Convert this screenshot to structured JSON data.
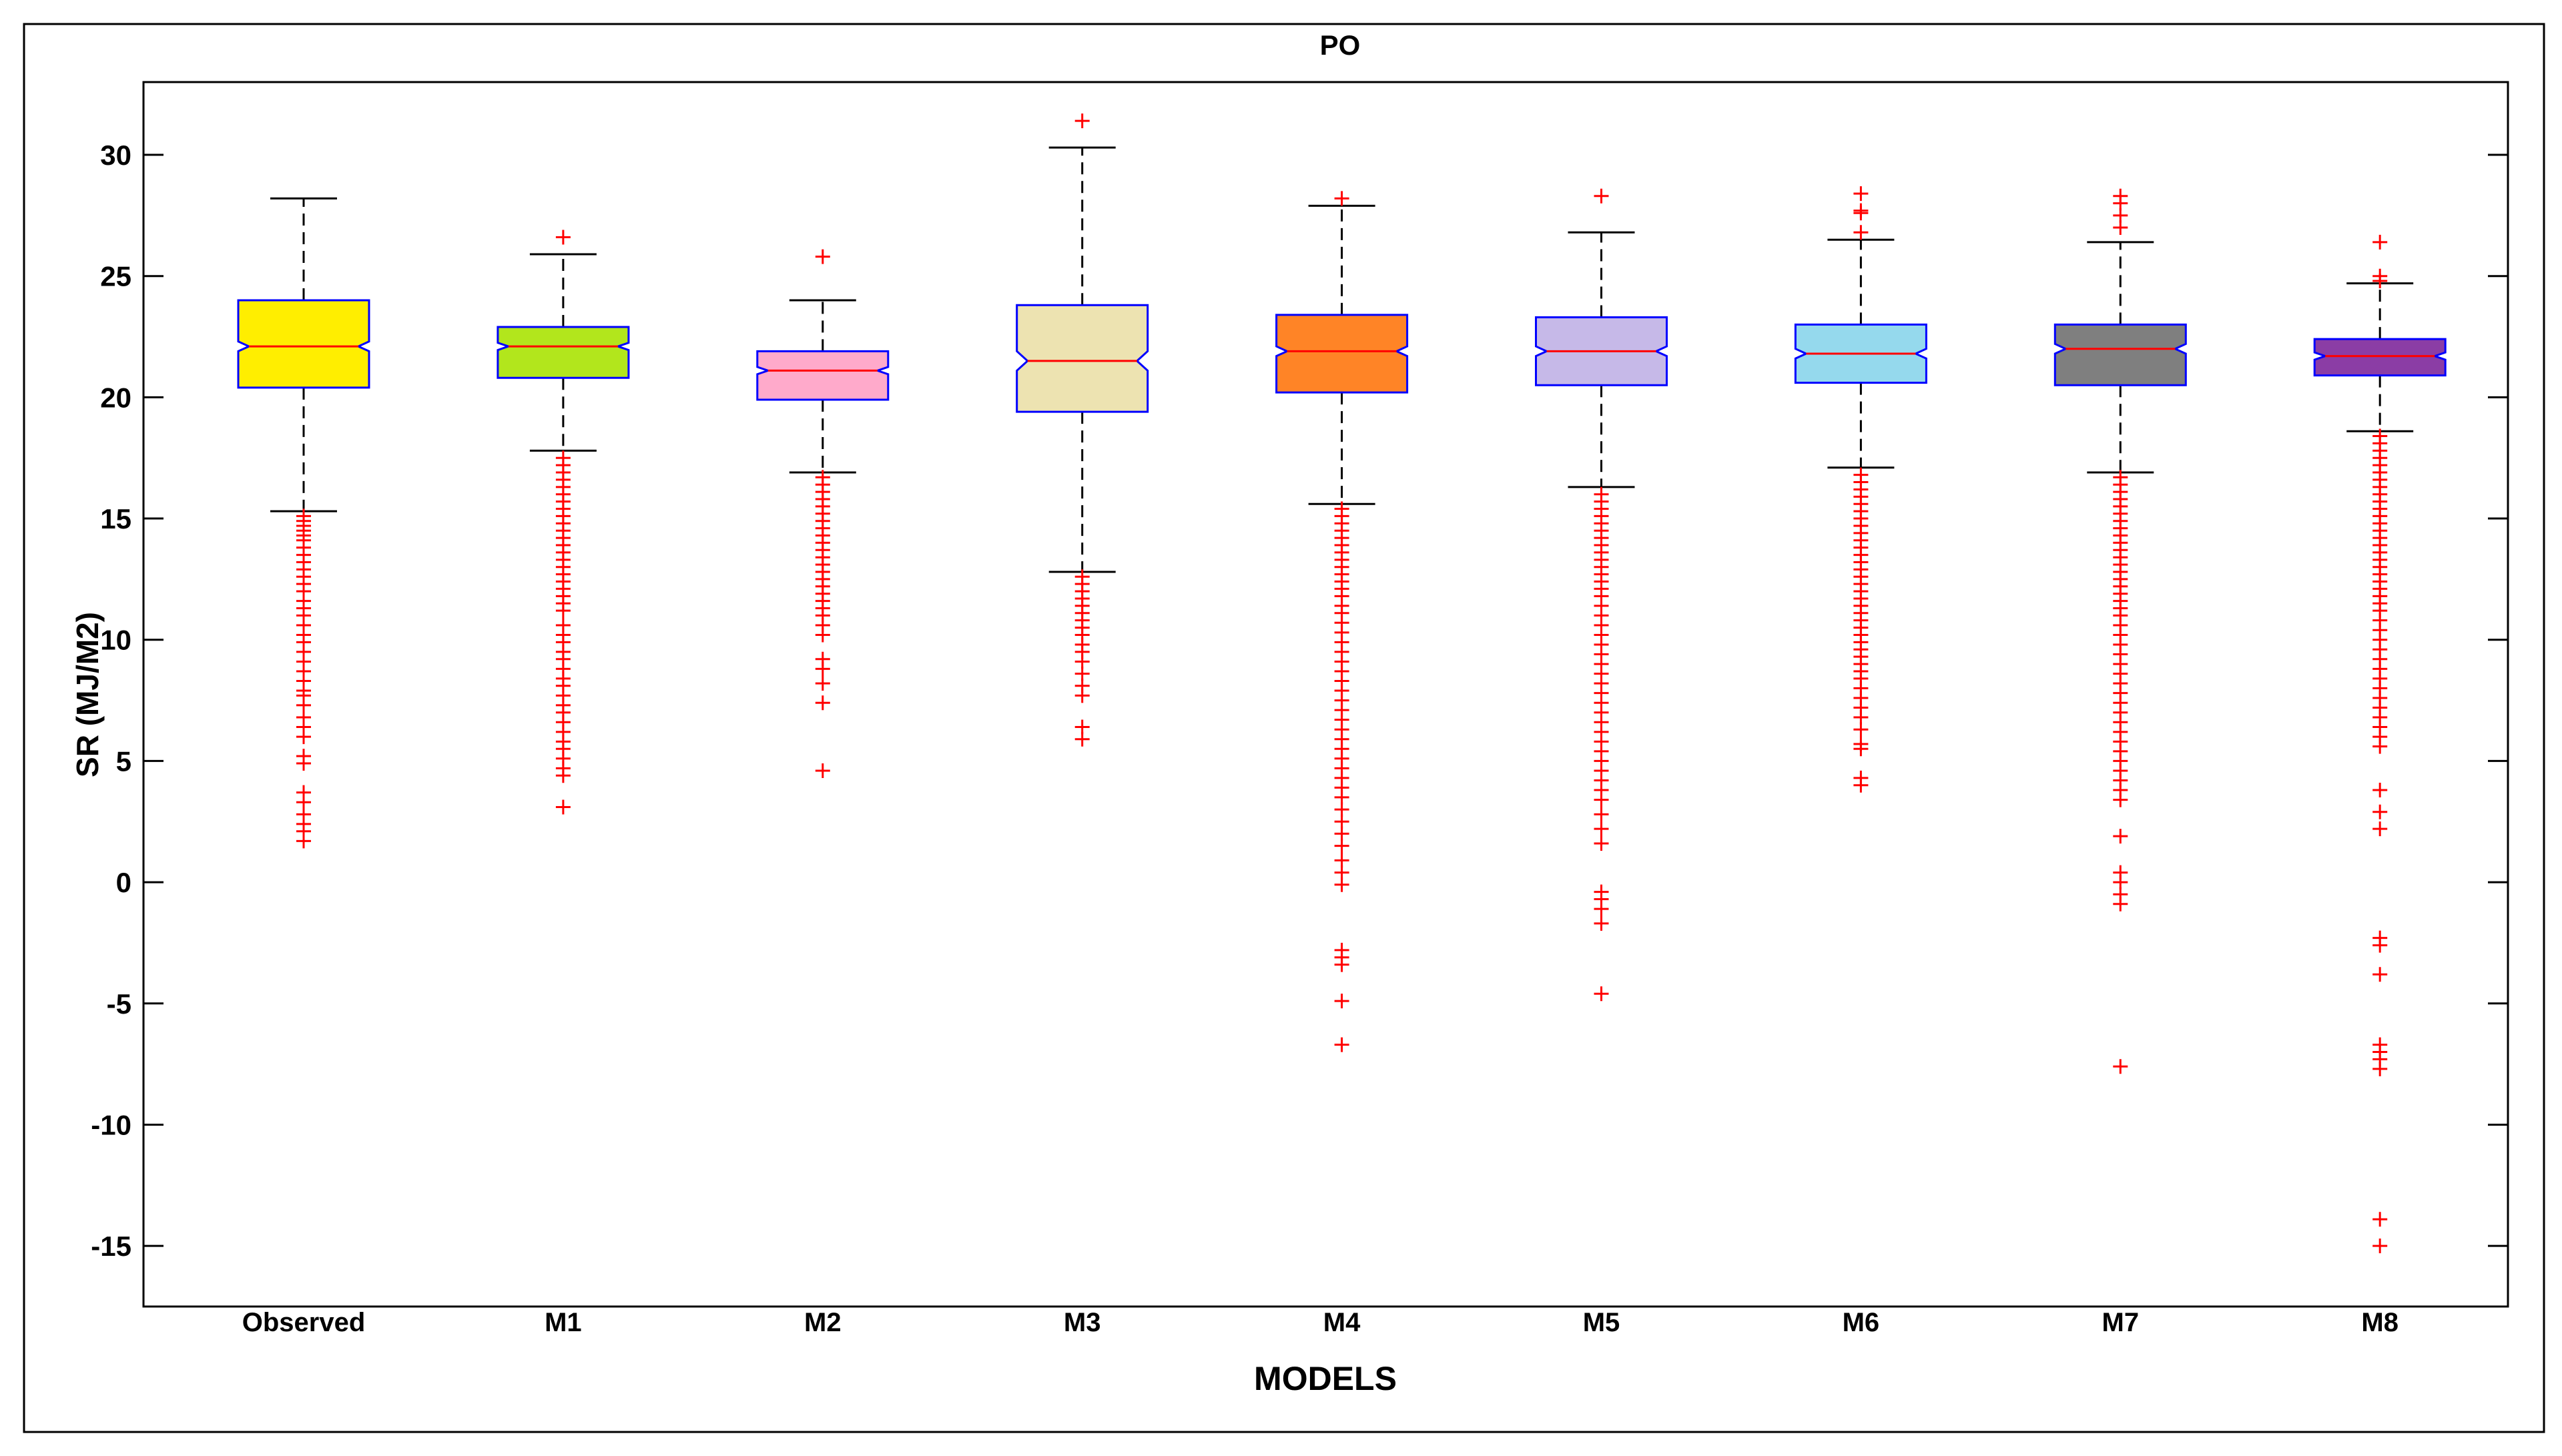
{
  "chart_data": {
    "type": "boxplot",
    "title": "PO",
    "xlabel": "MODELS",
    "ylabel": "SR (MJ/M2)",
    "ylim": [
      -17.5,
      33
    ],
    "yticks": [
      -15,
      -10,
      -5,
      0,
      5,
      10,
      15,
      20,
      25,
      30
    ],
    "notched": true,
    "grid": false,
    "categories": [
      "Observed",
      "M1",
      "M2",
      "M3",
      "M4",
      "M5",
      "M6",
      "M7",
      "M8"
    ],
    "boxes": [
      {
        "name": "Observed",
        "fill": "#ffee00",
        "edge": "#0000ff",
        "q1": 20.4,
        "median": 22.1,
        "q3": 24.0,
        "notch": [
          21.9,
          22.3
        ],
        "whisker_low": 15.3,
        "whisker_high": 28.2,
        "outliers": [
          15.1,
          14.9,
          14.7,
          14.5,
          14.3,
          14.1,
          13.8,
          13.5,
          13.2,
          12.9,
          12.6,
          12.3,
          12.0,
          11.6,
          11.3,
          11.0,
          10.6,
          10.2,
          9.9,
          9.5,
          9.1,
          8.7,
          8.3,
          7.9,
          7.7,
          7.3,
          6.8,
          6.4,
          6.0,
          5.2,
          4.9,
          3.7,
          3.3,
          2.8,
          2.4,
          2.1,
          1.7
        ]
      },
      {
        "name": "M1",
        "fill": "#b2e61c",
        "edge": "#0000ff",
        "q1": 20.8,
        "median": 22.1,
        "q3": 22.9,
        "notch": [
          21.95,
          22.25
        ],
        "whisker_low": 17.8,
        "whisker_high": 25.9,
        "outliers": [
          26.6,
          17.5,
          17.2,
          16.9,
          16.6,
          16.3,
          16.0,
          15.7,
          15.4,
          15.1,
          14.8,
          14.5,
          14.2,
          13.9,
          13.6,
          13.3,
          13.0,
          12.7,
          12.4,
          12.1,
          11.8,
          11.5,
          11.2,
          10.6,
          10.2,
          9.9,
          9.5,
          9.2,
          8.8,
          8.4,
          8.1,
          7.7,
          7.3,
          7.0,
          6.6,
          6.2,
          5.8,
          5.5,
          5.1,
          4.7,
          4.4,
          3.1
        ]
      },
      {
        "name": "M2",
        "fill": "#ffaacb",
        "edge": "#0000ff",
        "q1": 19.9,
        "median": 21.1,
        "q3": 21.9,
        "notch": [
          20.95,
          21.25
        ],
        "whisker_low": 16.9,
        "whisker_high": 24.0,
        "outliers": [
          25.8,
          16.7,
          16.4,
          16.1,
          15.8,
          15.5,
          15.2,
          14.9,
          14.6,
          14.3,
          14.0,
          13.7,
          13.4,
          13.1,
          12.8,
          12.5,
          12.2,
          11.9,
          11.6,
          11.3,
          11.0,
          10.6,
          10.2,
          9.2,
          8.8,
          8.2,
          7.4,
          4.6
        ]
      },
      {
        "name": "M3",
        "fill": "#ede3b1",
        "edge": "#0000ff",
        "q1": 19.4,
        "median": 21.5,
        "q3": 23.8,
        "notch": [
          21.1,
          21.9
        ],
        "whisker_low": 12.8,
        "whisker_high": 30.3,
        "outliers": [
          31.4,
          12.6,
          12.3,
          12.0,
          11.7,
          11.4,
          11.1,
          10.8,
          10.5,
          10.2,
          9.8,
          9.5,
          9.1,
          8.6,
          8.1,
          7.7,
          6.4,
          5.9
        ]
      },
      {
        "name": "M4",
        "fill": "#ff8426",
        "edge": "#0000ff",
        "q1": 20.2,
        "median": 21.9,
        "q3": 23.4,
        "notch": [
          21.7,
          22.1
        ],
        "whisker_low": 15.6,
        "whisker_high": 27.9,
        "outliers": [
          28.2,
          15.4,
          15.1,
          14.8,
          14.5,
          14.2,
          13.9,
          13.6,
          13.3,
          13.0,
          12.7,
          12.4,
          12.1,
          11.8,
          11.4,
          11.1,
          10.7,
          10.3,
          9.9,
          9.5,
          9.1,
          8.7,
          8.3,
          7.9,
          7.5,
          7.1,
          6.7,
          6.3,
          5.9,
          5.5,
          5.1,
          4.7,
          4.3,
          3.9,
          3.5,
          3.0,
          2.5,
          2.0,
          1.5,
          0.9,
          0.4,
          -0.1,
          -2.8,
          -3.1,
          -3.4,
          -4.9,
          -6.7
        ]
      },
      {
        "name": "M5",
        "fill": "#c6b9e8",
        "edge": "#0000ff",
        "q1": 20.5,
        "median": 21.9,
        "q3": 23.3,
        "notch": [
          21.7,
          22.1
        ],
        "whisker_low": 16.3,
        "whisker_high": 26.8,
        "outliers": [
          28.3,
          16.0,
          15.7,
          15.4,
          15.1,
          14.8,
          14.5,
          14.2,
          13.9,
          13.6,
          13.3,
          13.0,
          12.7,
          12.4,
          12.1,
          11.8,
          11.4,
          11.0,
          10.6,
          10.2,
          9.8,
          9.4,
          9.0,
          8.6,
          8.2,
          7.8,
          7.4,
          7.0,
          6.6,
          6.2,
          5.8,
          5.4,
          5.0,
          4.6,
          4.2,
          3.8,
          3.4,
          2.8,
          2.2,
          1.6,
          -0.4,
          -0.7,
          -1.1,
          -1.7,
          -4.6
        ]
      },
      {
        "name": "M6",
        "fill": "#95d9ed",
        "edge": "#0000ff",
        "q1": 20.6,
        "median": 21.8,
        "q3": 23.0,
        "notch": [
          21.6,
          22.0
        ],
        "whisker_low": 17.1,
        "whisker_high": 26.5,
        "outliers": [
          28.4,
          27.7,
          27.6,
          26.8,
          16.8,
          16.5,
          16.2,
          15.9,
          15.6,
          15.3,
          15.0,
          14.7,
          14.4,
          14.1,
          13.8,
          13.5,
          13.2,
          12.9,
          12.6,
          12.3,
          12.0,
          11.7,
          11.4,
          11.1,
          10.8,
          10.5,
          10.2,
          9.9,
          9.6,
          9.3,
          9.0,
          8.7,
          8.4,
          8.0,
          7.6,
          7.2,
          6.8,
          6.3,
          5.7,
          5.5,
          4.3,
          4.0
        ]
      },
      {
        "name": "M7",
        "fill": "#7f7f7f",
        "edge": "#0000ff",
        "q1": 20.5,
        "median": 22.0,
        "q3": 23.0,
        "notch": [
          21.8,
          22.2
        ],
        "whisker_low": 16.9,
        "whisker_high": 26.4,
        "outliers": [
          28.3,
          28.0,
          27.5,
          27.0,
          16.7,
          16.4,
          16.1,
          15.8,
          15.5,
          15.2,
          14.9,
          14.6,
          14.3,
          14.0,
          13.7,
          13.4,
          13.1,
          12.8,
          12.5,
          12.2,
          11.9,
          11.6,
          11.3,
          11.0,
          10.6,
          10.2,
          9.8,
          9.4,
          9.0,
          8.6,
          8.2,
          7.8,
          7.4,
          7.0,
          6.6,
          6.2,
          5.8,
          5.4,
          5.0,
          4.6,
          4.2,
          3.8,
          3.4,
          1.9,
          0.4,
          0.0,
          -0.5,
          -0.9,
          -7.6
        ]
      },
      {
        "name": "M8",
        "fill": "#8b3da5",
        "edge": "#0000ff",
        "q1": 20.9,
        "median": 21.7,
        "q3": 22.4,
        "notch": [
          21.55,
          21.85
        ],
        "whisker_low": 18.6,
        "whisker_high": 24.7,
        "outliers": [
          26.4,
          25.0,
          24.8,
          18.4,
          18.1,
          17.8,
          17.5,
          17.2,
          16.9,
          16.6,
          16.3,
          16.0,
          15.7,
          15.4,
          15.1,
          14.8,
          14.5,
          14.2,
          13.9,
          13.6,
          13.3,
          13.0,
          12.7,
          12.4,
          12.1,
          11.8,
          11.5,
          11.2,
          10.8,
          10.4,
          10.0,
          9.6,
          9.2,
          8.8,
          8.4,
          8.0,
          7.6,
          7.2,
          6.8,
          6.4,
          6.0,
          5.6,
          3.8,
          2.9,
          2.2,
          -2.3,
          -2.6,
          -3.8,
          -6.7,
          -7.0,
          -7.3,
          -7.7,
          -13.9,
          -15.0
        ]
      }
    ]
  },
  "colors": {
    "outlier": "#ff0000",
    "median": "#ff0000",
    "whisker": "#000000",
    "box_edge": "#0000ff",
    "frame": "#000000"
  }
}
